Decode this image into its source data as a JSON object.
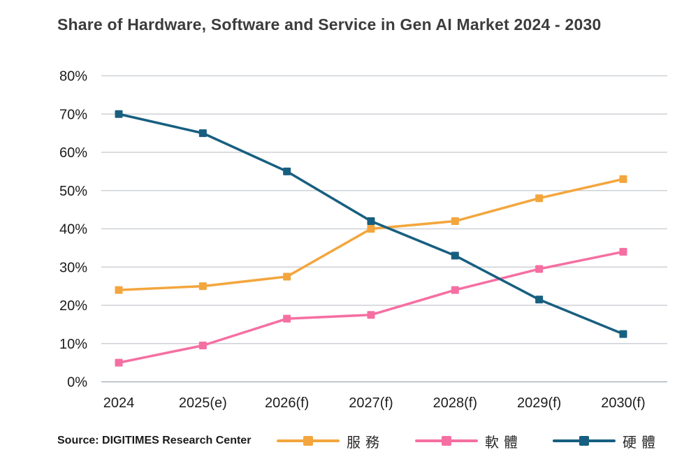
{
  "title": "Share of Hardware, Software and Service in Gen AI Market 2024 - 2030",
  "source": "Source: DIGITIMES Research Center",
  "chart_data": {
    "type": "line",
    "title": "Share of Hardware, Software and Service in Gen AI Market 2024 - 2030",
    "categories": [
      "2024",
      "2025(e)",
      "2026(f)",
      "2027(f)",
      "2028(f)",
      "2029(f)",
      "2030(f)"
    ],
    "series": [
      {
        "name": "服務",
        "color": "#F3A63D",
        "values": [
          24,
          25,
          27.5,
          40,
          42,
          48,
          53
        ]
      },
      {
        "name": "軟體",
        "color": "#F56FA2",
        "values": [
          5,
          9.5,
          16.5,
          17.5,
          24,
          29.5,
          34
        ]
      },
      {
        "name": "硬體",
        "color": "#175F80",
        "values": [
          70,
          65,
          55,
          42,
          33,
          21.5,
          12.5
        ]
      }
    ],
    "xlabel": "",
    "ylabel": "",
    "ylim": [
      0,
      80
    ],
    "ytick_step": 10,
    "yticks": [
      "0%",
      "10%",
      "20%",
      "30%",
      "40%",
      "50%",
      "60%",
      "70%",
      "80%"
    ],
    "grid": true,
    "marker": "square",
    "legend_position": "bottom"
  },
  "colors": {
    "grid_line": "#CDD1D6",
    "baseline": "#AEB4BA",
    "tick_text": "#1C1C1C",
    "title_text": "#3C3C3C"
  }
}
